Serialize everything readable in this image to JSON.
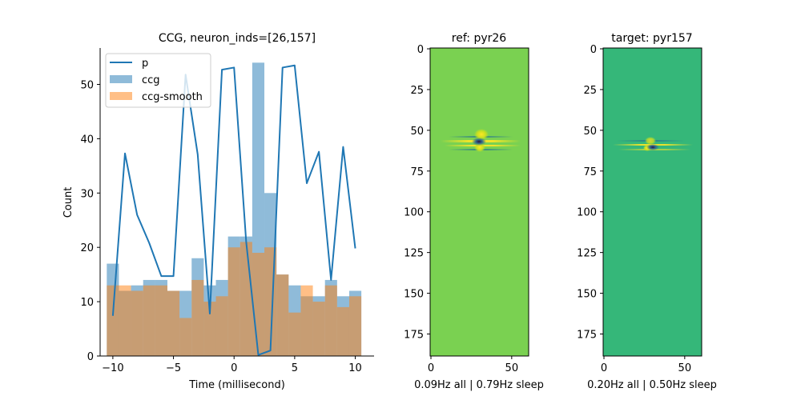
{
  "chart_data": [
    {
      "type": "bar",
      "title": "CCG, neuron_inds=[26,157]",
      "xlabel": "Time (millisecond)",
      "ylabel": "Count",
      "xlim": [
        -11.05,
        11.55
      ],
      "ylim": [
        0,
        56.7
      ],
      "xticks": [
        -10,
        -5,
        0,
        5,
        10
      ],
      "yticks": [
        0,
        10,
        20,
        30,
        40,
        50
      ],
      "bin_width": 1,
      "bin_centers": [
        -10,
        -9,
        -8,
        -7,
        -6,
        -5,
        -4,
        -3,
        -2,
        -1,
        0,
        1,
        2,
        3,
        4,
        5,
        6,
        7,
        8,
        9,
        10
      ],
      "legend_position": "upper-left",
      "series": [
        {
          "name": "p",
          "kind": "line",
          "color": "#1f77b4",
          "x": [
            -10,
            -9,
            -8,
            -7,
            -6,
            -5,
            -4,
            -3,
            -2,
            -1,
            0,
            1,
            2,
            3,
            4,
            5,
            6,
            7,
            8,
            9,
            10
          ],
          "values": [
            7.4,
            37.3,
            26.0,
            20.8,
            14.7,
            14.7,
            51.8,
            37.1,
            7.8,
            52.7,
            53.1,
            21.0,
            0.2,
            1.0,
            53.1,
            53.5,
            31.8,
            37.6,
            14.0,
            38.5,
            19.8
          ]
        },
        {
          "name": "ccg",
          "kind": "bar",
          "color": "#1f77b4",
          "alpha": 0.5,
          "values": [
            17,
            12,
            13,
            14,
            14,
            12,
            12,
            18,
            13,
            14,
            22,
            22,
            54,
            30,
            15,
            13,
            11,
            11,
            14,
            11,
            12
          ]
        },
        {
          "name": "ccg-smooth",
          "kind": "bar",
          "color": "#ff7f0e",
          "alpha": 0.5,
          "values": [
            13,
            13,
            12,
            13,
            13,
            12,
            7,
            14,
            10,
            11,
            20,
            21,
            19,
            20,
            15,
            8,
            13,
            10,
            13,
            9,
            11
          ]
        }
      ]
    },
    {
      "type": "heatmap",
      "title": "ref: pyr26",
      "xlabel": "0.09Hz all | 0.79Hz sleep",
      "xticks": [
        0,
        50
      ],
      "yticks": [
        0,
        25,
        50,
        75,
        100,
        125,
        150,
        175
      ],
      "xlim": [
        -0.5,
        60.5
      ],
      "ylim": [
        188.5,
        -0.5
      ],
      "background_color": "#7ad151",
      "blob_center": [
        30,
        58
      ]
    },
    {
      "type": "heatmap",
      "title": "target: pyr157",
      "xlabel": "0.20Hz all | 0.50Hz sleep",
      "xticks": [
        0,
        50
      ],
      "yticks": [
        0,
        25,
        50,
        75,
        100,
        125,
        150,
        175
      ],
      "xlim": [
        -0.5,
        60.5
      ],
      "ylim": [
        188.5,
        -0.5
      ],
      "background_color": "#35b779",
      "blob_center": [
        30,
        61
      ]
    }
  ]
}
